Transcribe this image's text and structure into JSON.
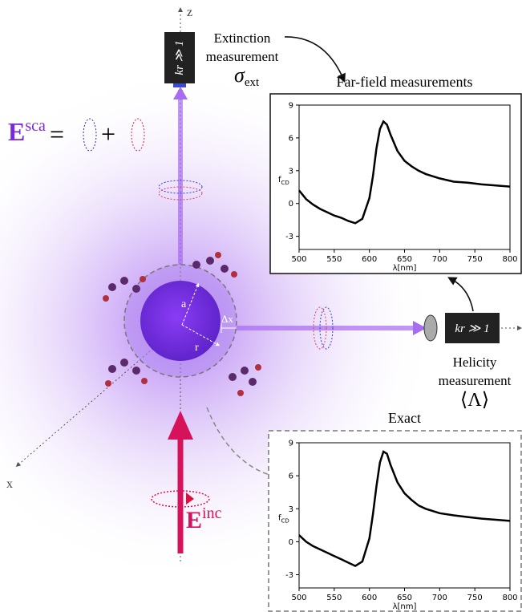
{
  "labels": {
    "z_axis": "z",
    "x_axis": "x",
    "extinction": [
      "Extinction",
      "measurement"
    ],
    "sigma": {
      "base": "σ",
      "sub": "ext"
    },
    "helicity": [
      "Helicity",
      "measurement"
    ],
    "lambda": "⟨Λ⟩",
    "camera_top": "kr ≫ 1",
    "camera_right": "kr ≫ 1",
    "e_sca": {
      "base": "E",
      "sup": "sca"
    },
    "equals": "=",
    "plus": "+",
    "e_inc": {
      "base": "E",
      "sup": "inc"
    },
    "radius_a": "a",
    "radius_r": "r",
    "delta_x": "Δx"
  },
  "chart_data": [
    {
      "type": "line",
      "title": "Far-field measurements",
      "xlabel": "λ[nm]",
      "ylabel": {
        "base": "f",
        "sub": "CD"
      },
      "x": [
        500,
        510,
        520,
        530,
        540,
        550,
        560,
        570,
        580,
        590,
        600,
        605,
        610,
        615,
        620,
        625,
        630,
        640,
        650,
        660,
        670,
        680,
        700,
        720,
        740,
        760,
        780,
        800
      ],
      "values": [
        1.2,
        0.4,
        -0.1,
        -0.5,
        -0.8,
        -1.1,
        -1.3,
        -1.6,
        -1.8,
        -1.4,
        0.5,
        2.5,
        5.0,
        6.8,
        7.5,
        7.2,
        6.3,
        4.8,
        3.9,
        3.4,
        3.0,
        2.7,
        2.3,
        2.0,
        1.9,
        1.75,
        1.65,
        1.55
      ],
      "color": "#000000",
      "xlim": [
        500,
        800
      ],
      "ylim": [
        -4.2,
        9
      ],
      "xticks": [
        500,
        550,
        600,
        650,
        700,
        750,
        800
      ],
      "yticks": [
        -3,
        0,
        3,
        6,
        9
      ]
    },
    {
      "type": "line",
      "title": "Exact",
      "xlabel": "λ[nm]",
      "ylabel": {
        "base": "f",
        "sub": "CD"
      },
      "x": [
        500,
        510,
        520,
        530,
        540,
        550,
        560,
        570,
        580,
        590,
        600,
        605,
        610,
        615,
        620,
        625,
        630,
        640,
        650,
        660,
        670,
        680,
        700,
        720,
        740,
        760,
        780,
        800
      ],
      "values": [
        0.6,
        0,
        -0.4,
        -0.7,
        -1.0,
        -1.3,
        -1.6,
        -1.9,
        -2.2,
        -1.8,
        0.3,
        2.5,
        5.0,
        7.2,
        8.2,
        8.0,
        7.0,
        5.4,
        4.4,
        3.8,
        3.3,
        3.0,
        2.6,
        2.4,
        2.25,
        2.1,
        2.0,
        1.9
      ],
      "color": "#000000",
      "xlim": [
        500,
        800
      ],
      "ylim": [
        -4.2,
        9
      ],
      "xticks": [
        500,
        550,
        600,
        650,
        700,
        750,
        800
      ],
      "yticks": [
        -3,
        0,
        3,
        6,
        9
      ]
    }
  ]
}
